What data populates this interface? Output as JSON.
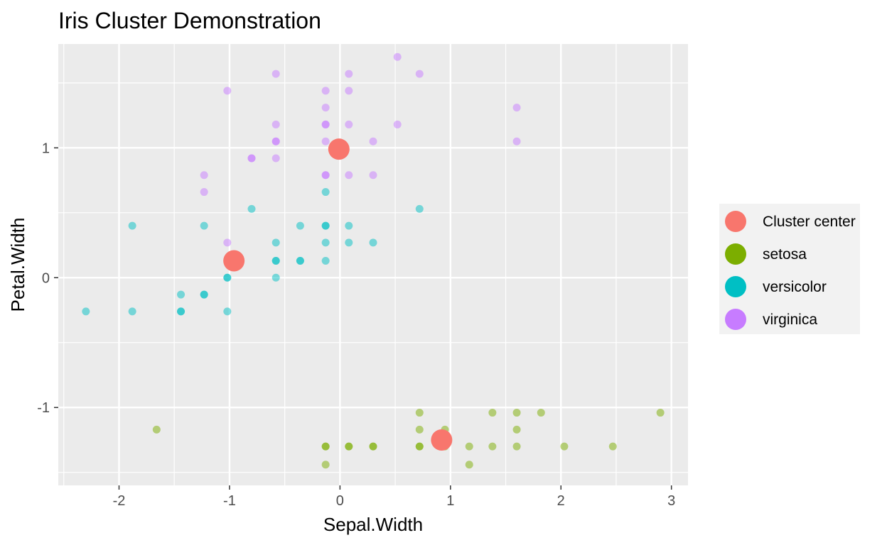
{
  "chart_data": {
    "type": "scatter",
    "title": "Iris Cluster Demonstration",
    "xlabel": "Sepal.Width",
    "ylabel": "Petal.Width",
    "xlim": [
      -2.55,
      3.15
    ],
    "ylim": [
      -1.6,
      1.8
    ],
    "x_ticks": [
      -2,
      -1,
      0,
      1,
      2,
      3
    ],
    "y_ticks": [
      -1,
      0,
      1
    ],
    "grid": true,
    "legend_position": "right",
    "colors": {
      "Cluster center": "#F8766D",
      "setosa": "#7CAE00",
      "versicolor": "#00BFC4",
      "virginica": "#C77CFF"
    },
    "legend": [
      "Cluster center",
      "setosa",
      "versicolor",
      "virginica"
    ],
    "series": [
      {
        "name": "setosa",
        "points": [
          [
            0.72,
            -1.04
          ],
          [
            1.38,
            -1.04
          ],
          [
            1.6,
            -1.04
          ],
          [
            1.82,
            -1.04
          ],
          [
            2.9,
            -1.04
          ],
          [
            -1.66,
            -1.17
          ],
          [
            0.72,
            -1.17
          ],
          [
            0.95,
            -1.17
          ],
          [
            1.6,
            -1.17
          ],
          [
            -0.13,
            -1.3
          ],
          [
            -0.13,
            -1.3
          ],
          [
            0.08,
            -1.3
          ],
          [
            0.08,
            -1.3
          ],
          [
            0.3,
            -1.3
          ],
          [
            0.3,
            -1.3
          ],
          [
            0.72,
            -1.3
          ],
          [
            0.72,
            -1.3
          ],
          [
            0.95,
            -1.3
          ],
          [
            1.17,
            -1.3
          ],
          [
            1.38,
            -1.3
          ],
          [
            1.6,
            -1.3
          ],
          [
            2.03,
            -1.3
          ],
          [
            2.47,
            -1.3
          ],
          [
            -0.13,
            -1.44
          ],
          [
            1.17,
            -1.44
          ]
        ]
      },
      {
        "name": "versicolor",
        "points": [
          [
            -0.13,
            0.66
          ],
          [
            -0.8,
            0.53
          ],
          [
            0.72,
            0.53
          ],
          [
            -1.88,
            0.4
          ],
          [
            -1.23,
            0.4
          ],
          [
            -0.36,
            0.4
          ],
          [
            -0.13,
            0.4
          ],
          [
            -0.13,
            0.4
          ],
          [
            0.08,
            0.4
          ],
          [
            -0.58,
            0.27
          ],
          [
            -0.13,
            0.27
          ],
          [
            0.08,
            0.27
          ],
          [
            0.3,
            0.27
          ],
          [
            -0.58,
            0.13
          ],
          [
            -0.58,
            0.13
          ],
          [
            -0.36,
            0.13
          ],
          [
            -0.36,
            0.13
          ],
          [
            -0.13,
            0.13
          ],
          [
            -1.02,
            0.0
          ],
          [
            -1.02,
            0.0
          ],
          [
            -0.58,
            0.0
          ],
          [
            -1.44,
            -0.13
          ],
          [
            -1.23,
            -0.13
          ],
          [
            -1.23,
            -0.13
          ],
          [
            -2.3,
            -0.26
          ],
          [
            -1.88,
            -0.26
          ],
          [
            -1.44,
            -0.26
          ],
          [
            -1.44,
            -0.26
          ],
          [
            -1.02,
            -0.26
          ]
        ]
      },
      {
        "name": "virginica",
        "points": [
          [
            0.52,
            1.7
          ],
          [
            -0.58,
            1.57
          ],
          [
            0.08,
            1.57
          ],
          [
            0.72,
            1.57
          ],
          [
            -1.02,
            1.44
          ],
          [
            -0.13,
            1.44
          ],
          [
            0.08,
            1.44
          ],
          [
            -0.13,
            1.31
          ],
          [
            1.6,
            1.31
          ],
          [
            -0.58,
            1.18
          ],
          [
            -0.13,
            1.18
          ],
          [
            -0.13,
            1.18
          ],
          [
            0.08,
            1.18
          ],
          [
            0.52,
            1.18
          ],
          [
            -0.58,
            1.05
          ],
          [
            -0.58,
            1.05
          ],
          [
            -0.13,
            1.05
          ],
          [
            0.3,
            1.05
          ],
          [
            1.6,
            1.05
          ],
          [
            -0.8,
            0.92
          ],
          [
            -0.8,
            0.92
          ],
          [
            -0.58,
            0.92
          ],
          [
            -1.23,
            0.79
          ],
          [
            -0.13,
            0.79
          ],
          [
            -0.13,
            0.79
          ],
          [
            0.08,
            0.79
          ],
          [
            0.3,
            0.79
          ],
          [
            -1.23,
            0.66
          ],
          [
            -1.02,
            0.27
          ]
        ]
      },
      {
        "name": "Cluster center",
        "points": [
          [
            -0.01,
            0.99
          ],
          [
            -0.96,
            0.13
          ],
          [
            0.92,
            -1.25
          ]
        ]
      }
    ]
  }
}
